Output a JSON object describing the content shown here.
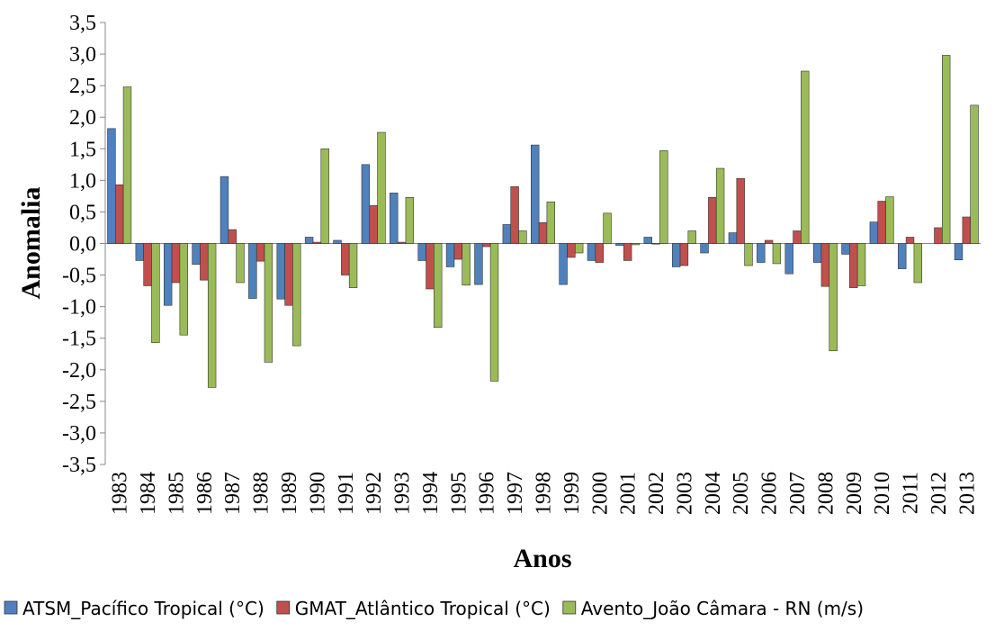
{
  "chart_data": {
    "type": "bar",
    "y_label": "Anomalia",
    "x_label": "Anos",
    "categories": [
      "1983",
      "1984",
      "1985",
      "1986",
      "1987",
      "1988",
      "1989",
      "1990",
      "1991",
      "1992",
      "1993",
      "1994",
      "1995",
      "1996",
      "1997",
      "1998",
      "1999",
      "2000",
      "2001",
      "2002",
      "2003",
      "2004",
      "2005",
      "2006",
      "2007",
      "2008",
      "2009",
      "2010",
      "2011",
      "2012",
      "2013"
    ],
    "series": [
      {
        "name": "ATSM_Pacífico Tropical (°C)",
        "color": "#4f81bd",
        "values": [
          1.82,
          -0.27,
          -0.98,
          -0.33,
          1.06,
          -0.87,
          -0.88,
          0.1,
          0.05,
          1.25,
          0.8,
          -0.27,
          -0.37,
          -0.65,
          0.3,
          1.56,
          -0.65,
          -0.27,
          -0.03,
          0.1,
          -0.37,
          -0.15,
          0.17,
          -0.3,
          -0.48,
          -0.3,
          -0.17,
          0.34,
          -0.4,
          0.0,
          -0.26
        ]
      },
      {
        "name": "GMAT_Atlântico Tropical (°C)",
        "color": "#c0504d",
        "values": [
          0.93,
          -0.67,
          -0.62,
          -0.58,
          0.22,
          -0.28,
          -0.98,
          0.02,
          -0.5,
          0.6,
          0.02,
          -0.72,
          -0.25,
          -0.05,
          0.9,
          0.33,
          -0.22,
          -0.3,
          -0.27,
          -0.01,
          -0.35,
          0.73,
          1.03,
          0.05,
          0.2,
          -0.68,
          -0.7,
          0.67,
          0.1,
          0.25,
          0.42
        ]
      },
      {
        "name": "Avento_João Câmara - RN (m/s)",
        "color": "#9bbb59",
        "values": [
          2.48,
          -1.57,
          -1.45,
          -2.28,
          -0.62,
          -1.88,
          -1.62,
          1.5,
          -0.7,
          1.76,
          0.73,
          -1.33,
          -0.66,
          -2.18,
          0.2,
          0.66,
          -0.15,
          0.48,
          -0.02,
          1.47,
          0.2,
          1.19,
          -0.35,
          -0.32,
          2.73,
          -1.7,
          -0.67,
          0.74,
          -0.62,
          2.98,
          2.19
        ]
      }
    ],
    "ylim": [
      -3.5,
      3.5
    ],
    "yticks": [
      {
        "value": -3.5,
        "label": "-3,5"
      },
      {
        "value": -3,
        "label": "-3,0"
      },
      {
        "value": -2.5,
        "label": "-2,5"
      },
      {
        "value": -2,
        "label": "-2,0"
      },
      {
        "value": -1.5,
        "label": "-1,5"
      },
      {
        "value": -1,
        "label": "-1,0"
      },
      {
        "value": -0.5,
        "label": "-0,5"
      },
      {
        "value": 0,
        "label": "0,0"
      },
      {
        "value": 0.5,
        "label": "0,5"
      },
      {
        "value": 1,
        "label": "1,0"
      },
      {
        "value": 1.5,
        "label": "1,5"
      },
      {
        "value": 2,
        "label": "2,0"
      },
      {
        "value": 2.5,
        "label": "2,5"
      },
      {
        "value": 3,
        "label": "3,0"
      },
      {
        "value": 3.5,
        "label": "3,5"
      }
    ],
    "legend": "bottom"
  }
}
